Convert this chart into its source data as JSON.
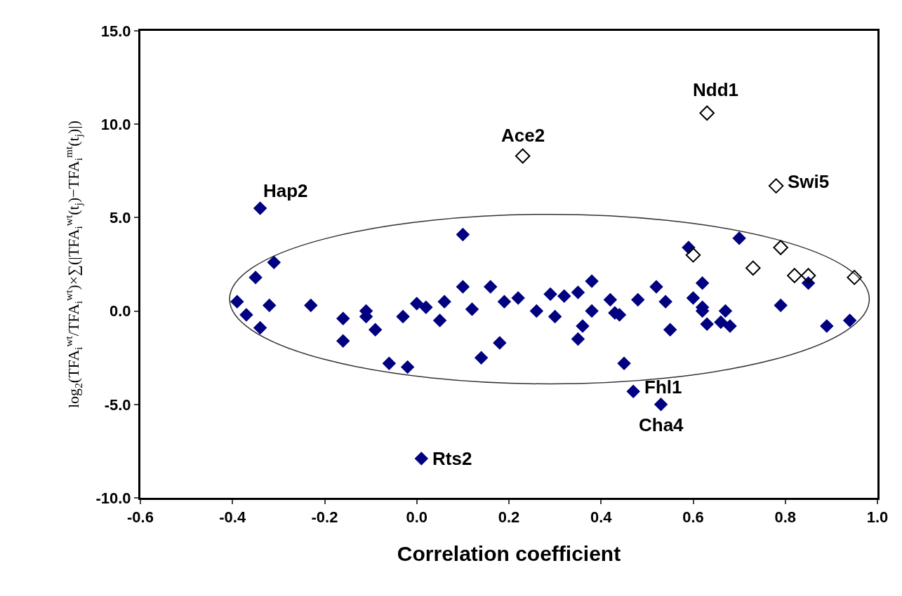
{
  "chart_data": {
    "type": "scatter",
    "xlabel": "Correlation coefficient",
    "ylabel": "log$_{2}$(TFA$_{i}$$^{wt}$/TFA$_{i}$$^{wt}$)×∑(|TFA$_{i}$$^{wt}$(t$_{j}$)−TFA$_{i}$$^{mt}$(t$_{j}$)|)",
    "xlim": [
      -0.6,
      1.0
    ],
    "xticks": [
      {
        "value": -0.6,
        "label": "-0.6"
      },
      {
        "value": -0.4,
        "label": "-0.4"
      },
      {
        "value": -0.2,
        "label": "-0.2"
      },
      {
        "value": 0,
        "label": "0.0"
      },
      {
        "value": 0.2,
        "label": "0.2"
      },
      {
        "value": 0.4,
        "label": "0.4"
      },
      {
        "value": 0.6,
        "label": "0.6"
      },
      {
        "value": 0.8,
        "label": "0.8"
      },
      {
        "value": 1.0,
        "label": "1.0"
      }
    ],
    "ylim": [
      -10,
      15
    ],
    "yticks": [
      {
        "value": -10,
        "label": "-10.0"
      },
      {
        "value": -5,
        "label": "-5.0"
      },
      {
        "value": 0,
        "label": "0.0"
      },
      {
        "value": 5,
        "label": "5.0"
      },
      {
        "value": 10,
        "label": "10.0"
      },
      {
        "value": 15,
        "label": "15.0"
      }
    ],
    "marker": "diamond",
    "series": [
      {
        "color": "#000080",
        "x": [
          -0.34,
          -0.31,
          -0.35,
          -0.39,
          -0.32,
          -0.37,
          -0.34,
          -0.23,
          -0.16,
          -0.16,
          -0.11,
          -0.11,
          -0.09,
          -0.06,
          0.1,
          -0.03,
          0.0,
          0.02,
          0.06,
          0.05,
          0.1,
          0.12,
          0.16,
          0.19,
          0.22,
          0.26,
          0.29,
          0.32,
          0.35,
          0.38,
          0.3,
          0.38,
          0.36,
          0.35,
          0.18,
          0.14,
          -0.02,
          0.42,
          0.43,
          0.44,
          0.45,
          0.01,
          0.59,
          0.7,
          0.62,
          0.85,
          0.79,
          0.52,
          0.48,
          0.54,
          0.6,
          0.62,
          0.62,
          0.67,
          0.63,
          0.66,
          0.68,
          0.55,
          0.89,
          0.94,
          0.47,
          0.53
        ],
        "values": [
          5.5,
          2.6,
          1.8,
          0.5,
          0.3,
          -0.2,
          -0.9,
          0.3,
          -0.4,
          -1.6,
          0.0,
          -0.3,
          -1.0,
          -2.8,
          4.1,
          -0.3,
          0.4,
          0.2,
          0.5,
          -0.5,
          1.3,
          0.1,
          1.3,
          0.5,
          0.7,
          0.0,
          0.9,
          0.8,
          1.0,
          1.6,
          -0.3,
          0.0,
          -0.8,
          -1.5,
          -1.7,
          -2.5,
          -3.0,
          0.6,
          -0.1,
          -0.2,
          -2.8,
          -7.9,
          3.4,
          3.9,
          1.5,
          1.5,
          0.3,
          1.3,
          0.6,
          0.5,
          0.7,
          0.2,
          0.0,
          0.0,
          -0.7,
          -0.6,
          -0.8,
          -1.0,
          -0.8,
          -0.5,
          -4.3,
          -5.0
        ]
      },
      {
        "color": "#000000",
        "marker": "diamond-open",
        "x": [
          0.63,
          0.78,
          0.23,
          0.6,
          0.79,
          0.73,
          0.82,
          0.85,
          0.95
        ],
        "values": [
          10.6,
          6.7,
          8.3,
          3.0,
          3.4,
          2.3,
          1.9,
          1.9,
          1.8
        ]
      }
    ],
    "annotations": [
      {
        "text": "Hap2",
        "x": -0.34,
        "y": 5.5
      },
      {
        "text": "Ace2",
        "x": 0.23,
        "y": 8.3
      },
      {
        "text": "Ndd1",
        "x": 0.63,
        "y": 10.6
      },
      {
        "text": "Swi5",
        "x": 0.78,
        "y": 6.7
      },
      {
        "text": "Fhl1",
        "x": 0.47,
        "y": -4.3
      },
      {
        "text": "Cha4",
        "x": 0.53,
        "y": -5.0
      },
      {
        "text": "Rts2",
        "x": 0.01,
        "y": -7.9
      }
    ]
  }
}
